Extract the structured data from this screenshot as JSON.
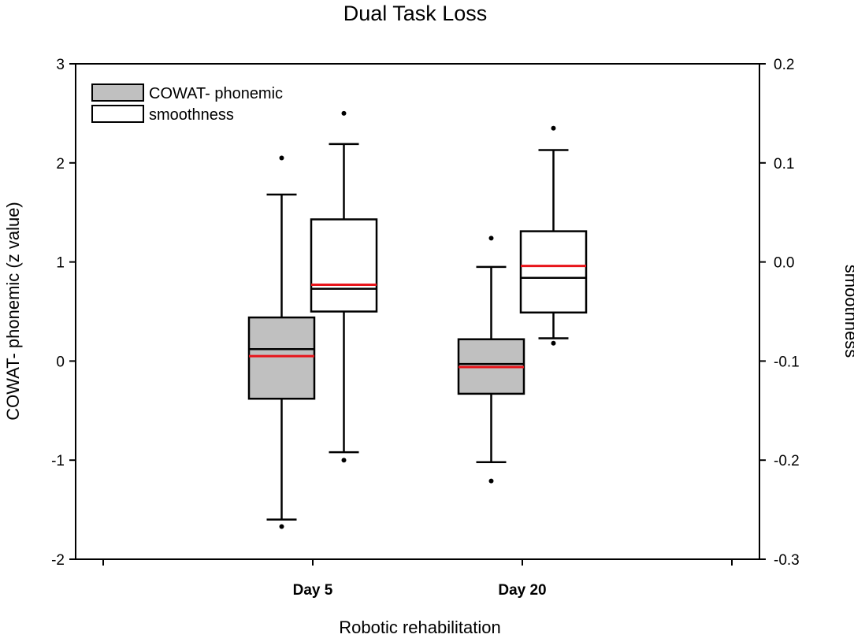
{
  "chart_data": {
    "type": "box",
    "title": "Dual Task Loss",
    "xlabel": "Robotic rehabilitation",
    "ylabel_left": "COWAT- phonemic (z value)",
    "ylabel_right": "smoothness",
    "categories": [
      "Day 5",
      "Day 20"
    ],
    "y_left": {
      "range": [
        -2,
        3
      ],
      "ticks": [
        -2,
        -1,
        0,
        1,
        2,
        3
      ],
      "tick_labels": [
        "-2",
        "-1",
        "0",
        "1",
        "2",
        "3"
      ]
    },
    "y_right": {
      "range": [
        -0.3,
        0.2
      ],
      "ticks": [
        -0.3,
        -0.2,
        -0.1,
        0.0,
        0.1,
        0.2
      ],
      "tick_labels": [
        "-0.3",
        "-0.2",
        "-0.1",
        "0.0",
        "0.1",
        "0.2"
      ]
    },
    "legend": {
      "position": "top-left"
    },
    "series": [
      {
        "name": "COWAT- phonemic",
        "axis": "left",
        "fill": "#c0c0c0",
        "boxes": [
          {
            "category": "Day 5",
            "whisker_low": -1.6,
            "q1": -0.38,
            "median": 0.12,
            "mean": 0.05,
            "q3": 0.44,
            "whisker_high": 1.68,
            "outliers": [
              2.05,
              -1.67
            ]
          },
          {
            "category": "Day 20",
            "whisker_low": -1.02,
            "q1": -0.33,
            "median": -0.03,
            "mean": -0.06,
            "q3": 0.22,
            "whisker_high": 0.95,
            "outliers": [
              1.24,
              -1.21
            ]
          }
        ]
      },
      {
        "name": "smoothness",
        "axis": "right",
        "fill": "#ffffff",
        "boxes": [
          {
            "category": "Day 5",
            "whisker_low": -0.192,
            "q1": -0.05,
            "median": -0.027,
            "mean": -0.023,
            "q3": 0.043,
            "whisker_high": 0.119,
            "outliers": [
              0.15,
              -0.2
            ]
          },
          {
            "category": "Day 20",
            "whisker_low": -0.077,
            "q1": -0.051,
            "median": -0.016,
            "mean": -0.004,
            "q3": 0.031,
            "whisker_high": 0.113,
            "outliers": [
              0.135,
              -0.082
            ]
          }
        ]
      }
    ],
    "colors": {
      "mean_line": "#e8141a",
      "median_line": "#000000",
      "box_edge": "#000000"
    }
  }
}
